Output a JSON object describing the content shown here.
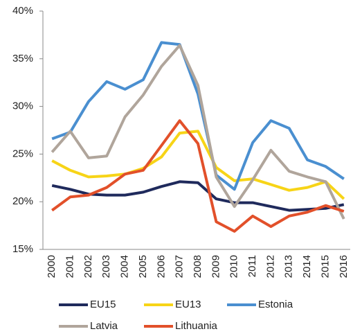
{
  "chart_data": {
    "type": "line",
    "categories": [
      "2000",
      "2001",
      "2002",
      "2003",
      "2004",
      "2005",
      "2006",
      "2007",
      "2008",
      "2009",
      "2010",
      "2011",
      "2012",
      "2013",
      "2014",
      "2015",
      "2016"
    ],
    "series": [
      {
        "name": "EU15",
        "color": "#1f2a5c",
        "values": [
          21.7,
          21.3,
          20.8,
          20.7,
          20.7,
          21.0,
          21.6,
          22.1,
          22.0,
          20.3,
          19.9,
          19.9,
          19.5,
          19.1,
          19.2,
          19.3,
          19.7
        ]
      },
      {
        "name": "EU13",
        "color": "#f7d417",
        "values": [
          24.3,
          23.3,
          22.6,
          22.7,
          22.9,
          23.5,
          24.7,
          27.2,
          27.4,
          23.6,
          22.2,
          22.4,
          21.8,
          21.2,
          21.5,
          22.1,
          20.3
        ]
      },
      {
        "name": "Estonia",
        "color": "#4a8fd0",
        "values": [
          26.6,
          27.3,
          30.5,
          32.6,
          31.8,
          32.8,
          36.7,
          36.5,
          31.3,
          22.8,
          21.3,
          26.2,
          28.5,
          27.7,
          24.4,
          23.7,
          22.4
        ]
      },
      {
        "name": "Latvia",
        "color": "#b0a59b",
        "values": [
          25.2,
          27.4,
          24.6,
          24.8,
          28.9,
          31.2,
          34.2,
          36.4,
          32.2,
          22.6,
          19.5,
          22.3,
          25.4,
          23.2,
          22.6,
          22.1,
          18.2
        ]
      },
      {
        "name": "Lithuania",
        "color": "#e2502a",
        "values": [
          19.1,
          20.5,
          20.7,
          21.5,
          22.9,
          23.3,
          25.9,
          28.5,
          26.1,
          17.9,
          16.9,
          18.5,
          17.4,
          18.5,
          18.9,
          19.6,
          19.0
        ]
      }
    ],
    "ylim": [
      15,
      40
    ],
    "yticks": [
      {
        "value": 15,
        "label": "15%"
      },
      {
        "value": 20,
        "label": "20%"
      },
      {
        "value": 25,
        "label": "25%"
      },
      {
        "value": 30,
        "label": "30%"
      },
      {
        "value": 35,
        "label": "35%"
      },
      {
        "value": 40,
        "label": "40%"
      }
    ],
    "grid": false,
    "legend": "bottom"
  }
}
